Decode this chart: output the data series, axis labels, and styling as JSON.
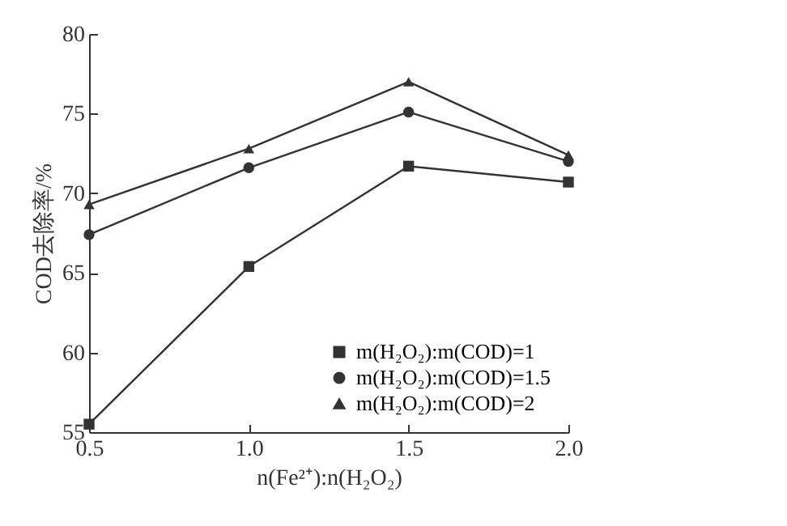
{
  "chart_data": {
    "type": "line",
    "xlabel": "n(Fe²⁺):n(H₂O₂)",
    "ylabel": "COD去除率/%",
    "x": [
      0.5,
      1.0,
      1.5,
      2.0
    ],
    "xlim": [
      0.5,
      2.0
    ],
    "xticks": [
      {
        "value": 0.5,
        "label": "0.5"
      },
      {
        "value": 1,
        "label": "1.0"
      },
      {
        "value": 1.5,
        "label": "1.5"
      },
      {
        "value": 2,
        "label": "2.0"
      }
    ],
    "ylim": [
      55,
      80
    ],
    "yticks": [
      55,
      60,
      65,
      70,
      75,
      80
    ],
    "grid": false,
    "legend": "bottom right",
    "series": [
      {
        "name": "m(H₂O₂):m(COD)=1",
        "color": "#333333",
        "marker": "square",
        "values": [
          55.5,
          65.4,
          71.7,
          70.7
        ]
      },
      {
        "name": "m(H₂O₂):m(COD)=1.5",
        "color": "#333333",
        "marker": "circle",
        "values": [
          67.4,
          71.6,
          75.1,
          72.0
        ]
      },
      {
        "name": "m(H₂O₂):m(COD)=2",
        "color": "#333333",
        "marker": "triangle",
        "values": [
          69.3,
          72.8,
          77.0,
          72.4
        ]
      }
    ]
  }
}
